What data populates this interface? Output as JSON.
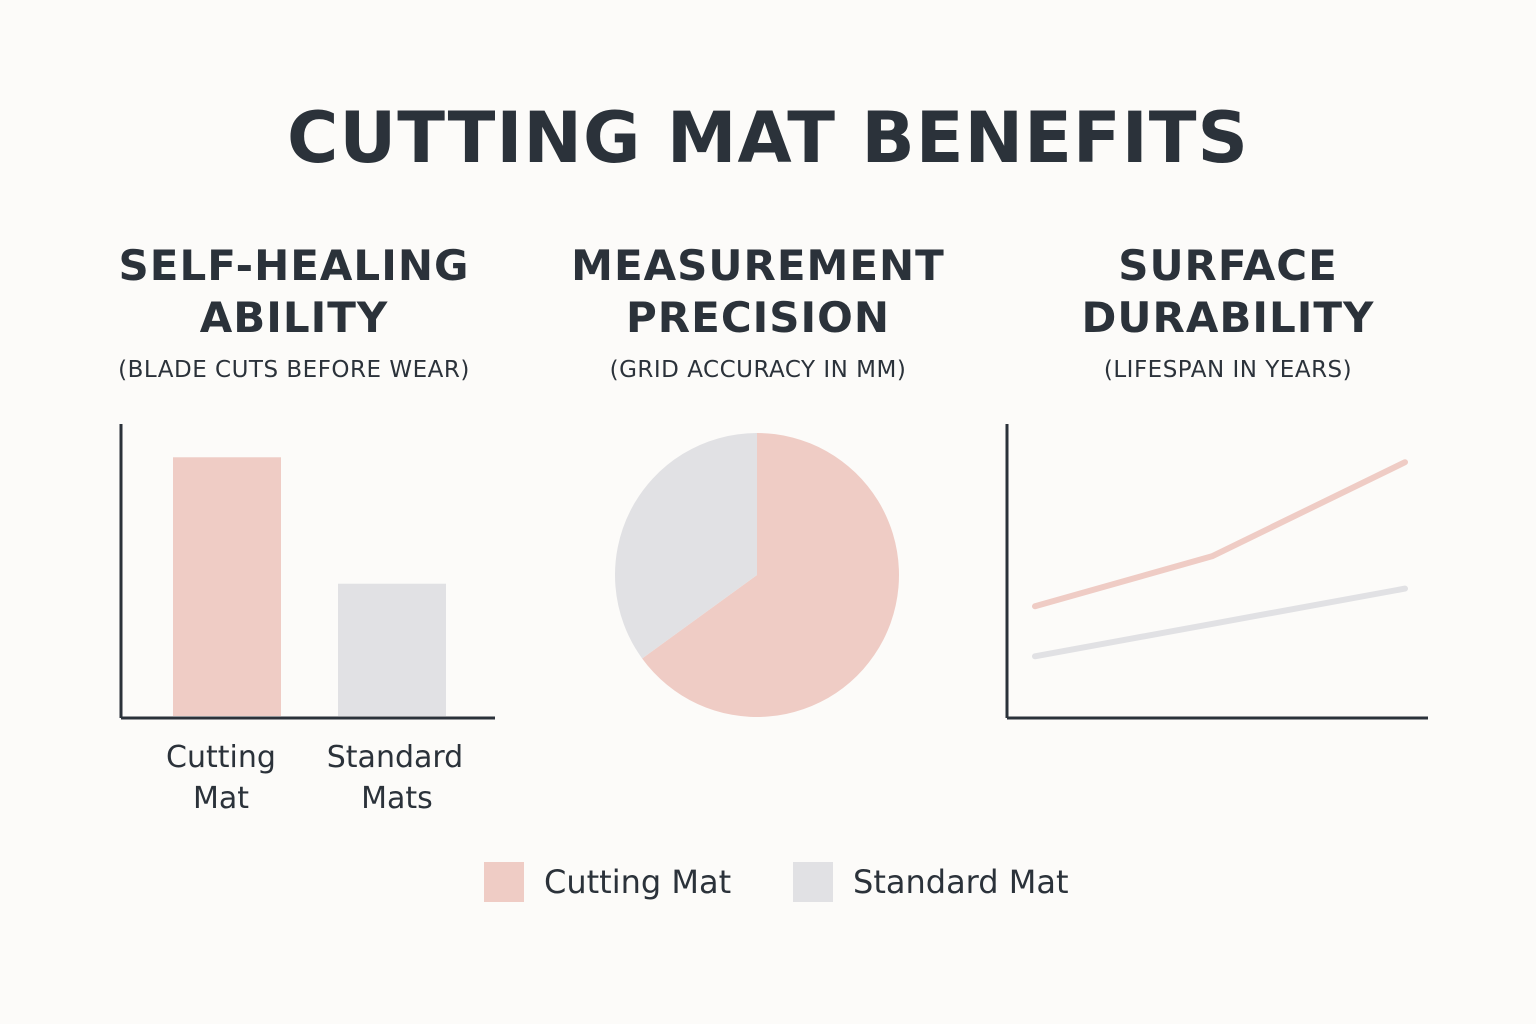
{
  "title": "CUTTING MAT BENEFITS",
  "colors": {
    "cutting_mat": "#efccc5",
    "standard_mat": "#e1e1e4",
    "axis": "#2b323a",
    "text": "#2b323a"
  },
  "legend": [
    {
      "label": "Cutting Mat",
      "color": "#efccc5"
    },
    {
      "label": "Standard Mat",
      "color": "#e1e1e4"
    }
  ],
  "chart_data": [
    {
      "type": "bar",
      "title_line1": "SELF-HEALING",
      "title_line2": "ABILITY",
      "subtitle": "(BLADE CUTS BEFORE WEAR)",
      "categories": [
        {
          "line1": "Cutting",
          "line2": "Mat"
        },
        {
          "line1": "Standard",
          "line2": "Mats"
        }
      ],
      "values": [
        88,
        45
      ],
      "ylim": [
        0,
        100
      ]
    },
    {
      "type": "pie",
      "title_line1": "MEASUREMENT",
      "title_line2": "PRECISION",
      "subtitle": "(GRID ACCURACY IN MM)",
      "slices": [
        {
          "series": "Cutting Mat",
          "value": 65
        },
        {
          "series": "Standard Mat",
          "value": 35
        }
      ]
    },
    {
      "type": "line",
      "title_line1": "SURFACE",
      "title_line2": "DURABILITY",
      "subtitle": "(LIFESPAN IN YEARS)",
      "x": [
        0,
        1,
        2
      ],
      "series": [
        {
          "name": "Cutting Mat",
          "values": [
            38,
            55,
            87
          ]
        },
        {
          "name": "Standard Mat",
          "values": [
            21,
            32,
            44
          ]
        }
      ],
      "ylim": [
        0,
        100
      ]
    }
  ]
}
